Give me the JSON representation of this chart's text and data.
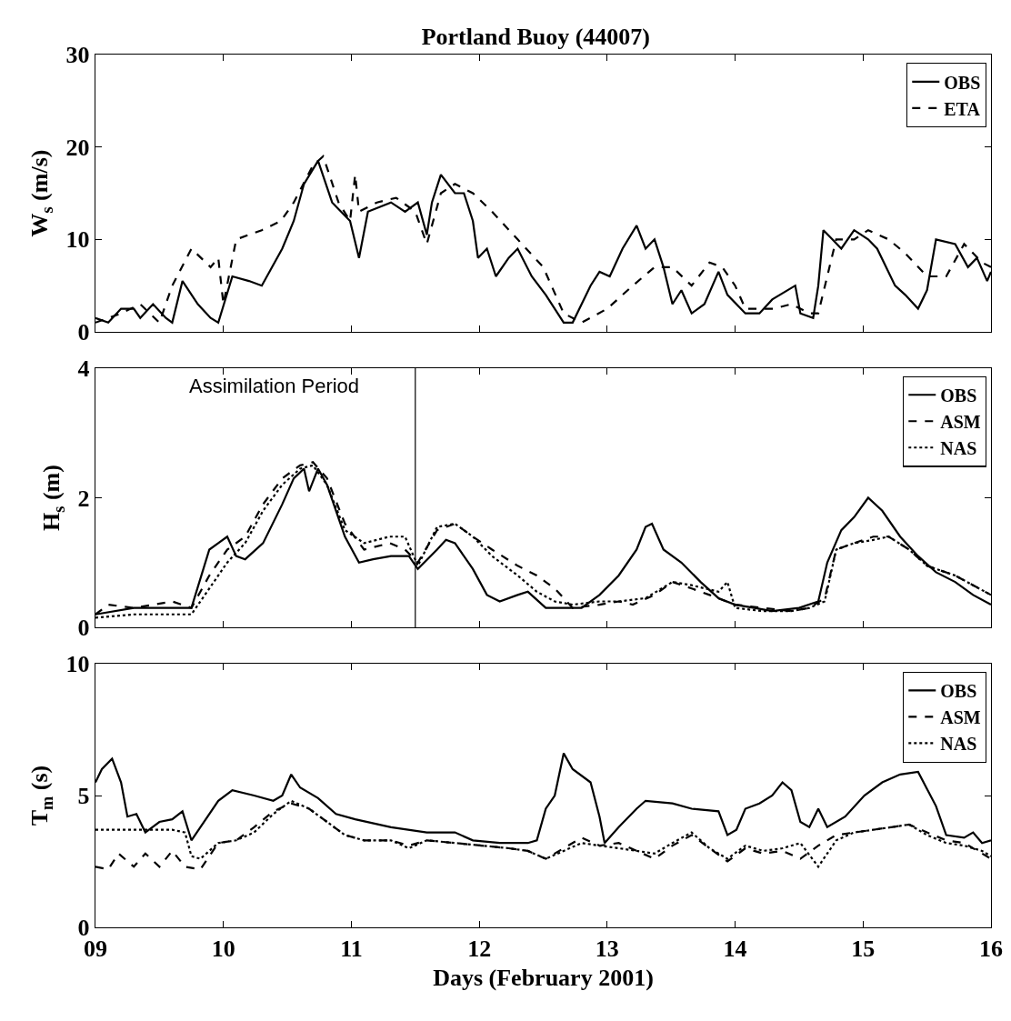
{
  "chart_data": [
    {
      "type": "line",
      "title": "Portland Buoy (44007)",
      "ylabel": "W$_{s}$ (m/s)",
      "xlim": [
        9,
        16
      ],
      "xticks": [
        9,
        10,
        11,
        12,
        13,
        14,
        15,
        16
      ],
      "ylim": [
        0,
        30
      ],
      "yticks": [
        0,
        10,
        20,
        30
      ],
      "tick_labels": "y",
      "legend": "top right",
      "series": [
        {
          "name": "OBS",
          "color": "#000000",
          "line_style": "solid",
          "x": [
            9.0,
            9.1,
            9.2,
            9.3,
            9.35,
            9.45,
            9.55,
            9.6,
            9.68,
            9.8,
            9.9,
            9.96,
            10.07,
            10.2,
            10.3,
            10.46,
            10.55,
            10.63,
            10.74,
            10.85,
            10.99,
            11.06,
            11.13,
            11.31,
            11.42,
            11.52,
            11.59,
            11.63,
            11.7,
            11.81,
            11.88,
            11.95,
            11.99,
            12.06,
            12.13,
            12.23,
            12.3,
            12.41,
            12.52,
            12.66,
            12.73,
            12.87,
            12.94,
            13.02,
            13.12,
            13.23,
            13.3,
            13.37,
            13.44,
            13.51,
            13.58,
            13.66,
            13.76,
            13.87,
            13.94,
            14.08,
            14.19,
            14.29,
            14.47,
            14.51,
            14.61,
            14.65,
            14.69,
            14.76,
            14.83,
            14.93,
            15.04,
            15.11,
            15.18,
            15.25,
            15.33,
            15.43,
            15.5,
            15.57,
            15.72,
            15.82,
            15.89,
            15.97,
            16.0
          ],
          "values": [
            1.5,
            1,
            2.5,
            2.5,
            1.5,
            3,
            1.5,
            1,
            5.5,
            3,
            1.5,
            1,
            6,
            5.5,
            5,
            9,
            12,
            16,
            18.5,
            14,
            12,
            8,
            13,
            14,
            13,
            14,
            10.5,
            14,
            17,
            15,
            15,
            12,
            8,
            9,
            6,
            8,
            9,
            6,
            4,
            1,
            1,
            5,
            6.5,
            6,
            9,
            11.5,
            9,
            10,
            7,
            3,
            4.5,
            2,
            3,
            6.5,
            4,
            2,
            2,
            3.5,
            5,
            2,
            1.5,
            5,
            11,
            10,
            9,
            11,
            10,
            9,
            7,
            5,
            4,
            2.5,
            4.5,
            10,
            9.5,
            7,
            8,
            5.5,
            6.5
          ]
        },
        {
          "name": "ETA",
          "color": "#000000",
          "line_style": "dashed",
          "x": [
            9.0,
            9.2,
            9.35,
            9.5,
            9.6,
            9.75,
            9.9,
            9.96,
            10.0,
            10.1,
            10.3,
            10.45,
            10.55,
            10.7,
            10.78,
            10.9,
            10.99,
            11.03,
            11.06,
            11.2,
            11.35,
            11.5,
            11.59,
            11.7,
            11.81,
            11.95,
            12.1,
            12.3,
            12.5,
            12.66,
            12.8,
            13.0,
            13.2,
            13.37,
            13.51,
            13.66,
            13.8,
            13.9,
            14.0,
            14.08,
            14.3,
            14.44,
            14.58,
            14.65,
            14.79,
            14.93,
            15.04,
            15.2,
            15.33,
            15.5,
            15.65,
            15.79,
            15.93,
            16.0
          ],
          "values": [
            1,
            2,
            3,
            1,
            5,
            9,
            7,
            8,
            3,
            10,
            11,
            12,
            14,
            18,
            19,
            14,
            12,
            17,
            13,
            14,
            14.5,
            13,
            9.5,
            15,
            16,
            15,
            13,
            10,
            7,
            2,
            1,
            2.5,
            5,
            7,
            7,
            5,
            7.5,
            7,
            5,
            2.5,
            2.5,
            3,
            2,
            2,
            10,
            10,
            11,
            10,
            8.5,
            6,
            6,
            9.5,
            7.5,
            7
          ]
        }
      ]
    },
    {
      "type": "line",
      "ylabel": "H$_{s}$ (m)",
      "xlim": [
        9,
        16
      ],
      "xticks": [
        9,
        10,
        11,
        12,
        13,
        14,
        15,
        16
      ],
      "ylim": [
        0,
        4
      ],
      "yticks": [
        0,
        2,
        4
      ],
      "tick_labels": "y",
      "legend": "top right",
      "ref_lines": [
        {
          "axis": "x",
          "value": 11.5,
          "label": "Assimilation Period",
          "color": "#000000",
          "line_style": "solid"
        }
      ],
      "series": [
        {
          "name": "OBS",
          "color": "#000000",
          "line_style": "solid",
          "x": [
            9.0,
            9.3,
            9.6,
            9.75,
            9.89,
            9.96,
            10.03,
            10.1,
            10.17,
            10.31,
            10.46,
            10.55,
            10.63,
            10.67,
            10.74,
            10.81,
            10.95,
            11.06,
            11.17,
            11.31,
            11.45,
            11.52,
            11.67,
            11.74,
            11.81,
            11.95,
            12.06,
            12.16,
            12.3,
            12.38,
            12.52,
            12.66,
            12.8,
            12.94,
            13.09,
            13.23,
            13.3,
            13.35,
            13.44,
            13.58,
            13.73,
            13.87,
            14.0,
            14.15,
            14.29,
            14.5,
            14.65,
            14.72,
            14.83,
            14.93,
            15.04,
            15.15,
            15.29,
            15.43,
            15.57,
            15.72,
            15.86,
            16.0
          ],
          "values": [
            0.2,
            0.3,
            0.3,
            0.3,
            1.2,
            1.3,
            1.4,
            1.1,
            1.05,
            1.3,
            1.9,
            2.3,
            2.45,
            2.1,
            2.45,
            2.2,
            1.4,
            1.0,
            1.05,
            1.1,
            1.1,
            0.9,
            1.2,
            1.35,
            1.3,
            0.9,
            0.5,
            0.4,
            0.5,
            0.55,
            0.3,
            0.3,
            0.3,
            0.5,
            0.8,
            1.2,
            1.55,
            1.6,
            1.2,
            1.0,
            0.7,
            0.45,
            0.35,
            0.3,
            0.25,
            0.3,
            0.4,
            1.0,
            1.5,
            1.7,
            2.0,
            1.8,
            1.4,
            1.1,
            0.85,
            0.7,
            0.5,
            0.35
          ]
        },
        {
          "name": "ASM",
          "color": "#000000",
          "line_style": "dashed",
          "x": [
            9.0,
            9.1,
            9.3,
            9.6,
            9.75,
            9.89,
            10.03,
            10.17,
            10.31,
            10.46,
            10.6,
            10.7,
            10.81,
            10.95,
            11.1,
            11.3,
            11.42,
            11.52,
            11.67,
            11.81,
            11.95,
            12.1,
            12.3,
            12.45,
            12.59,
            12.73,
            12.94,
            13.09,
            13.2,
            13.37,
            13.51,
            13.66,
            13.8,
            14.0,
            14.22,
            14.44,
            14.58,
            14.7,
            14.79,
            14.93,
            15.08,
            15.2,
            15.36,
            15.5,
            15.72,
            15.86,
            16.0
          ],
          "values": [
            0.2,
            0.35,
            0.3,
            0.4,
            0.3,
            0.8,
            1.2,
            1.4,
            1.9,
            2.3,
            2.5,
            2.55,
            2.3,
            1.6,
            1.2,
            1.3,
            1.2,
            1.0,
            1.5,
            1.6,
            1.4,
            1.2,
            0.95,
            0.8,
            0.6,
            0.3,
            0.35,
            0.4,
            0.35,
            0.5,
            0.7,
            0.6,
            0.5,
            0.35,
            0.3,
            0.25,
            0.3,
            0.45,
            1.2,
            1.3,
            1.4,
            1.4,
            1.2,
            0.95,
            0.8,
            0.65,
            0.5
          ]
        },
        {
          "name": "NAS",
          "color": "#000000",
          "line_style": "dotted",
          "x": [
            9.0,
            9.3,
            9.6,
            9.75,
            9.89,
            10.03,
            10.17,
            10.31,
            10.46,
            10.6,
            10.7,
            10.81,
            10.95,
            11.1,
            11.3,
            11.42,
            11.52,
            11.67,
            11.81,
            11.95,
            12.1,
            12.3,
            12.45,
            12.59,
            12.73,
            12.94,
            13.09,
            13.3,
            13.51,
            13.66,
            13.87,
            13.94,
            14.0,
            14.22,
            14.44,
            14.58,
            14.7,
            14.79,
            14.93,
            15.08,
            15.2,
            15.36,
            15.5,
            15.72,
            15.86,
            16.0
          ],
          "values": [
            0.15,
            0.2,
            0.2,
            0.2,
            0.6,
            1.0,
            1.3,
            1.8,
            2.2,
            2.45,
            2.5,
            2.2,
            1.5,
            1.3,
            1.4,
            1.4,
            0.95,
            1.55,
            1.6,
            1.4,
            1.1,
            0.8,
            0.55,
            0.4,
            0.35,
            0.4,
            0.4,
            0.45,
            0.7,
            0.65,
            0.55,
            0.7,
            0.3,
            0.25,
            0.25,
            0.3,
            0.4,
            1.2,
            1.3,
            1.35,
            1.4,
            1.2,
            0.95,
            0.8,
            0.65,
            0.5
          ]
        }
      ]
    },
    {
      "type": "line",
      "xlabel": "Days (February 2001)",
      "ylabel": "T$_{m}$ (s)",
      "xlim": [
        9,
        16
      ],
      "xticks": [
        {
          "value": 9,
          "label": "09"
        },
        {
          "value": 10,
          "label": "10"
        },
        {
          "value": 11,
          "label": "11"
        },
        {
          "value": 12,
          "label": "12"
        },
        {
          "value": 13,
          "label": "13"
        },
        {
          "value": 14,
          "label": "14"
        },
        {
          "value": 15,
          "label": "15"
        },
        {
          "value": 16,
          "label": "16"
        }
      ],
      "ylim": [
        0,
        10
      ],
      "yticks": [
        0,
        5,
        10
      ],
      "legend": "top right",
      "series": [
        {
          "name": "OBS",
          "color": "#000000",
          "line_style": "solid",
          "x": [
            9.0,
            9.05,
            9.13,
            9.2,
            9.25,
            9.32,
            9.39,
            9.5,
            9.6,
            9.68,
            9.75,
            9.82,
            9.96,
            10.07,
            10.24,
            10.39,
            10.46,
            10.53,
            10.6,
            10.74,
            10.88,
            11.03,
            11.31,
            11.59,
            11.81,
            11.95,
            12.16,
            12.38,
            12.45,
            12.52,
            12.59,
            12.66,
            12.73,
            12.87,
            12.94,
            12.98,
            13.09,
            13.23,
            13.3,
            13.51,
            13.66,
            13.87,
            13.94,
            14.01,
            14.08,
            14.19,
            14.29,
            14.37,
            14.44,
            14.51,
            14.58,
            14.65,
            14.72,
            14.86,
            15.01,
            15.15,
            15.29,
            15.43,
            15.57,
            15.65,
            15.79,
            15.86,
            15.93,
            16.0
          ],
          "values": [
            5.5,
            6.0,
            6.4,
            5.5,
            4.2,
            4.3,
            3.6,
            4.0,
            4.1,
            4.4,
            3.3,
            3.8,
            4.8,
            5.2,
            5.0,
            4.8,
            5.0,
            5.8,
            5.3,
            4.9,
            4.3,
            4.1,
            3.8,
            3.6,
            3.6,
            3.3,
            3.2,
            3.2,
            3.3,
            4.5,
            5.0,
            6.6,
            6.0,
            5.5,
            4.2,
            3.2,
            3.8,
            4.5,
            4.8,
            4.7,
            4.5,
            4.4,
            3.5,
            3.7,
            4.5,
            4.7,
            5.0,
            5.5,
            5.2,
            4.0,
            3.8,
            4.5,
            3.8,
            4.2,
            5.0,
            5.5,
            5.8,
            5.9,
            4.6,
            3.5,
            3.4,
            3.6,
            3.2,
            3.3
          ]
        },
        {
          "name": "ASM",
          "color": "#000000",
          "line_style": "dashed",
          "x": [
            9.0,
            9.1,
            9.18,
            9.3,
            9.39,
            9.5,
            9.6,
            9.7,
            9.82,
            9.96,
            10.1,
            10.24,
            10.39,
            10.53,
            10.67,
            10.81,
            10.95,
            11.1,
            11.31,
            11.45,
            11.59,
            11.81,
            12.02,
            12.23,
            12.38,
            12.52,
            12.66,
            12.8,
            12.94,
            13.09,
            13.23,
            13.37,
            13.51,
            13.66,
            13.8,
            13.94,
            14.08,
            14.22,
            14.37,
            14.51,
            14.65,
            14.79,
            14.93,
            15.08,
            15.22,
            15.36,
            15.5,
            15.65,
            15.79,
            15.93,
            16.0
          ],
          "values": [
            2.3,
            2.2,
            2.8,
            2.3,
            2.8,
            2.3,
            2.9,
            2.3,
            2.2,
            3.2,
            3.3,
            3.8,
            4.4,
            4.7,
            4.5,
            4.0,
            3.5,
            3.3,
            3.3,
            3.1,
            3.3,
            3.2,
            3.1,
            3.0,
            2.9,
            2.6,
            3.0,
            3.4,
            3.1,
            3.2,
            2.9,
            2.6,
            3.1,
            3.5,
            3.0,
            2.5,
            3.0,
            2.8,
            2.9,
            2.6,
            3.1,
            3.5,
            3.6,
            3.7,
            3.8,
            3.9,
            3.6,
            3.3,
            3.2,
            2.8,
            2.6
          ]
        },
        {
          "name": "NAS",
          "color": "#000000",
          "line_style": "dotted",
          "x": [
            9.0,
            9.39,
            9.6,
            9.7,
            9.75,
            9.82,
            9.96,
            10.1,
            10.24,
            10.39,
            10.53,
            10.67,
            10.81,
            10.95,
            11.1,
            11.31,
            11.45,
            11.59,
            11.81,
            12.02,
            12.23,
            12.38,
            12.52,
            12.66,
            12.8,
            12.94,
            13.09,
            13.23,
            13.37,
            13.51,
            13.66,
            13.8,
            13.94,
            14.08,
            14.22,
            14.37,
            14.51,
            14.65,
            14.79,
            14.93,
            15.08,
            15.22,
            15.36,
            15.5,
            15.65,
            15.79,
            15.93,
            16.0
          ],
          "values": [
            3.7,
            3.7,
            3.7,
            3.6,
            2.7,
            2.6,
            3.2,
            3.3,
            3.6,
            4.3,
            4.8,
            4.5,
            4.0,
            3.5,
            3.3,
            3.3,
            3.0,
            3.3,
            3.2,
            3.1,
            3.0,
            2.9,
            2.6,
            2.9,
            3.2,
            3.1,
            3.0,
            2.9,
            2.8,
            3.2,
            3.6,
            3.0,
            2.6,
            3.1,
            2.9,
            3.0,
            3.2,
            2.3,
            3.3,
            3.6,
            3.7,
            3.8,
            3.9,
            3.5,
            3.2,
            3.1,
            2.9,
            2.7
          ]
        }
      ]
    }
  ]
}
